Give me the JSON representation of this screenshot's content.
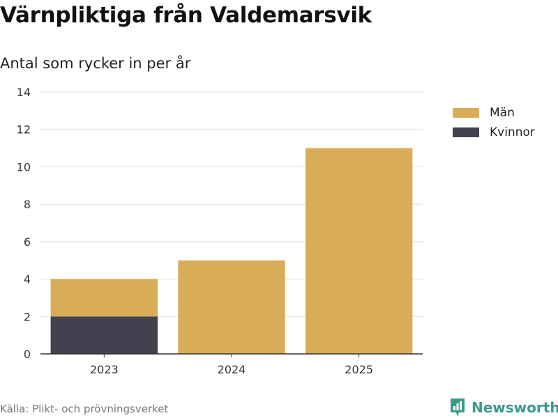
{
  "header": {
    "title": "Värnpliktiga från Valdemarsvik",
    "subtitle": "Antal som rycker in per år"
  },
  "footer": {
    "source": "Källa: Plikt- och prövningsverket",
    "logo_text": "Newsworthy",
    "logo_icon": "bar-chart-logo-icon"
  },
  "colors": {
    "man": "#d9ad57",
    "kvinnor": "#434150",
    "grid": "#dddddd",
    "axis": "#333333",
    "brand": "#3b9a8c"
  },
  "chart_data": {
    "type": "bar",
    "stacked": true,
    "categories": [
      "2023",
      "2024",
      "2025"
    ],
    "series": [
      {
        "name": "Kvinnor",
        "values": [
          2,
          0,
          0
        ],
        "color": "#434150"
      },
      {
        "name": "Män",
        "values": [
          2,
          5,
          11
        ],
        "color": "#d9ad57"
      }
    ],
    "title": "Värnpliktiga från Valdemarsvik",
    "subtitle": "Antal som rycker in per år",
    "xlabel": "",
    "ylabel": "",
    "ylim": [
      0,
      14
    ],
    "yticks": [
      0,
      2,
      4,
      6,
      8,
      10,
      12,
      14
    ],
    "grid": true,
    "legend": {
      "position": "top-right",
      "entries": [
        "Män",
        "Kvinnor"
      ]
    }
  }
}
